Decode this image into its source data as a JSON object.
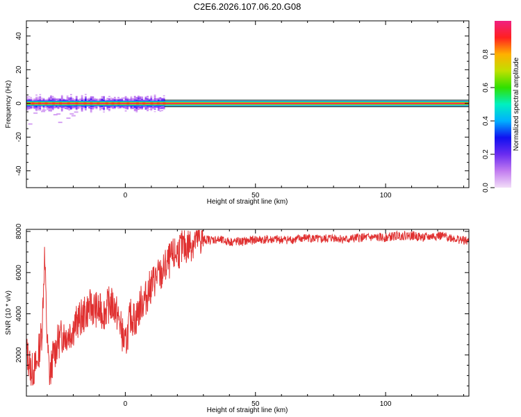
{
  "title": "C2E6.2026.107.06.20.G08",
  "colors": {
    "snr_line": "#e03030",
    "colorbar_stops": [
      "#f2ddf8",
      "#c27cf0",
      "#6a2cf0",
      "#1010f0",
      "#00b0ff",
      "#00f0c0",
      "#30e000",
      "#c0e000",
      "#ffb000",
      "#ff2020",
      "#f02080"
    ]
  },
  "chart_data": [
    {
      "type": "heatmap",
      "title": "C2E6.2026.107.06.20.G08",
      "xlabel": "Height of straight line (km)",
      "ylabel": "Frequency (Hz)",
      "xlim": [
        -38,
        132
      ],
      "ylim": [
        -50,
        49
      ],
      "x_ticks": [
        0,
        50,
        100
      ],
      "x_tick_labels": [
        "0",
        "50",
        "100"
      ],
      "y_ticks": [
        -40,
        -20,
        0,
        20,
        40
      ],
      "y_tick_labels": [
        "-40",
        "-20",
        "0",
        "20",
        "40"
      ],
      "grid": false,
      "band": {
        "center_frequency": 0,
        "half_width": 1.5,
        "x_range": [
          -38,
          132
        ],
        "description_values": "dominant spectral peak near 0 Hz across all heights; scattered weaker components up to about ±6 Hz for heights below 15 km"
      },
      "colorbar": {
        "label": "Normalized spectral amplitude",
        "range": [
          0,
          1
        ],
        "ticks": [
          0.0,
          0.2,
          0.4,
          0.6,
          0.8
        ],
        "tick_labels": [
          "0.0",
          "0.2",
          "0.4",
          "0.6",
          "0.8"
        ]
      }
    },
    {
      "type": "line",
      "xlabel": "Height of straight line (km)",
      "ylabel": "SNR (10 * v/v)",
      "xlim": [
        -38,
        132
      ],
      "ylim": [
        0,
        8100
      ],
      "x_ticks": [
        0,
        50,
        100
      ],
      "x_tick_labels": [
        "0",
        "50",
        "100"
      ],
      "y_ticks": [
        2000,
        4000,
        6000,
        8000
      ],
      "y_tick_labels": [
        "2000",
        "4000",
        "6000",
        "8000"
      ],
      "grid": false,
      "series": [
        {
          "x": [
            -38,
            -36,
            -34,
            -32,
            -31,
            -30,
            -29,
            -28,
            -26,
            -24,
            -22,
            -20,
            -18,
            -16,
            -14,
            -12,
            -10,
            -8,
            -6,
            -4,
            -2,
            0,
            2,
            4,
            6,
            8,
            10,
            12,
            14,
            16,
            18,
            20,
            22,
            24,
            26,
            28,
            30,
            32,
            35,
            40,
            45,
            50,
            55,
            60,
            65,
            70,
            75,
            80,
            85,
            90,
            95,
            100,
            105,
            110,
            115,
            120,
            125,
            132
          ],
          "y": [
            2200,
            1200,
            1500,
            3200,
            6900,
            2600,
            900,
            1800,
            2600,
            3000,
            3000,
            3300,
            3700,
            3900,
            4300,
            4300,
            4100,
            4100,
            4500,
            4300,
            3500,
            2400,
            3900,
            3700,
            4500,
            4800,
            5400,
            5800,
            5900,
            6400,
            6700,
            7000,
            7200,
            7300,
            7500,
            7600,
            7600,
            7600,
            7600,
            7500,
            7500,
            7600,
            7600,
            7600,
            7600,
            7700,
            7600,
            7700,
            7600,
            7700,
            7700,
            7700,
            7800,
            7800,
            7700,
            7800,
            7700,
            7500
          ]
        }
      ]
    }
  ]
}
